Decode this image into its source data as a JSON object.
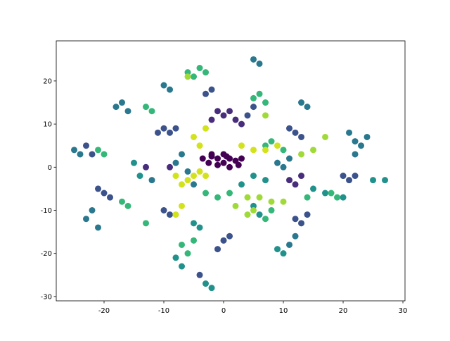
{
  "chart_data": {
    "type": "scatter",
    "xlim": [
      -28,
      30.35
    ],
    "ylim": [
      -31,
      29.3
    ],
    "xticks": [
      -20,
      -10,
      0,
      10,
      20,
      30
    ],
    "yticks": [
      -30,
      -20,
      -10,
      0,
      10,
      20
    ],
    "series": [
      {
        "color": "#440154",
        "x": [
          -3.5,
          -2.5,
          -2,
          -1,
          0,
          0,
          1,
          2,
          2.5,
          -1,
          1,
          3,
          -2,
          0.5
        ],
        "y": [
          2,
          1,
          3,
          2,
          1,
          3,
          2,
          1.5,
          0.5,
          0.5,
          0,
          2,
          2.5,
          2.5
        ]
      },
      {
        "color": "#472d7b",
        "x": [
          -1,
          0,
          2,
          3,
          -2,
          1,
          12,
          13,
          11,
          -13,
          -9
        ],
        "y": [
          13,
          12,
          11,
          10,
          11,
          13,
          -4,
          -2,
          -3,
          0,
          0
        ]
      },
      {
        "color": "#3b528b",
        "x": [
          -10,
          -9,
          -11,
          -8,
          21,
          22,
          12,
          13,
          14,
          -23,
          -22,
          -20,
          -19,
          -21,
          -10,
          -9,
          12,
          11,
          13,
          0,
          -1,
          1,
          5,
          4,
          -4,
          -3,
          -2,
          20
        ],
        "y": [
          9,
          8,
          8,
          9,
          -3,
          -2,
          -12,
          -13,
          -11,
          5,
          3,
          -6,
          -7,
          -5,
          -10,
          -11,
          8,
          9,
          7,
          -17,
          -19,
          -16,
          14,
          12,
          -25,
          17,
          18,
          -2
        ]
      },
      {
        "color": "#2a788e",
        "x": [
          22,
          23,
          21,
          22,
          24,
          -17,
          -18,
          -16,
          -10,
          -9,
          -6,
          -8,
          -5,
          -7,
          13,
          14,
          -23,
          -21,
          -22,
          5,
          6,
          9,
          10,
          11,
          -25,
          -24,
          12,
          11,
          -12
        ],
        "y": [
          6,
          5,
          8,
          3,
          7,
          15,
          14,
          13,
          19,
          18,
          -1,
          1,
          -4,
          3,
          15,
          14,
          -12,
          -14,
          -10,
          25,
          24,
          1,
          0,
          2,
          4,
          3,
          -16,
          -18,
          -3
        ]
      },
      {
        "color": "#21918c",
        "x": [
          25,
          27,
          9,
          10,
          -2,
          -3,
          -7,
          -8,
          5,
          6,
          -5,
          -4,
          17,
          15,
          5,
          7,
          -14,
          -15,
          3,
          20
        ],
        "y": [
          -3,
          -3,
          -19,
          -20,
          -28,
          -27,
          -23,
          -21,
          -9,
          -11,
          -13,
          -14,
          -6,
          -5,
          -2,
          -3,
          -2,
          1,
          -4,
          -7
        ]
      },
      {
        "color": "#35b779",
        "x": [
          -4,
          -5,
          -3,
          -6,
          5,
          7,
          6,
          -13,
          -12,
          -1,
          1,
          -3,
          -7,
          -6,
          -5,
          -17,
          -16,
          7,
          8,
          8,
          7,
          10,
          -20,
          -21,
          14,
          19,
          18,
          -13
        ],
        "y": [
          23,
          21,
          22,
          22,
          16,
          15,
          17,
          14,
          13,
          -7,
          -6,
          -6,
          -18,
          -20,
          -17,
          -8,
          -9,
          -12,
          -10,
          6,
          5,
          4,
          3,
          4,
          -7,
          -7,
          -6,
          -13
        ]
      },
      {
        "color": "#a0da39",
        "x": [
          6,
          8,
          5,
          10,
          4,
          13,
          15,
          17,
          7,
          -6,
          2,
          4
        ],
        "y": [
          -7,
          -8,
          -10,
          -8,
          -11,
          3,
          4,
          7,
          12,
          21,
          -9,
          -7
        ]
      },
      {
        "color": "#d2e21b",
        "x": [
          -5,
          -6,
          -4,
          -7,
          -3,
          5,
          7,
          3,
          9,
          -7,
          -8,
          -3,
          -5,
          -4,
          -8
        ],
        "y": [
          -2,
          -3,
          -1,
          -4,
          -2,
          4,
          4,
          5,
          5,
          -9,
          -11,
          9,
          7,
          5,
          -2
        ]
      }
    ]
  }
}
